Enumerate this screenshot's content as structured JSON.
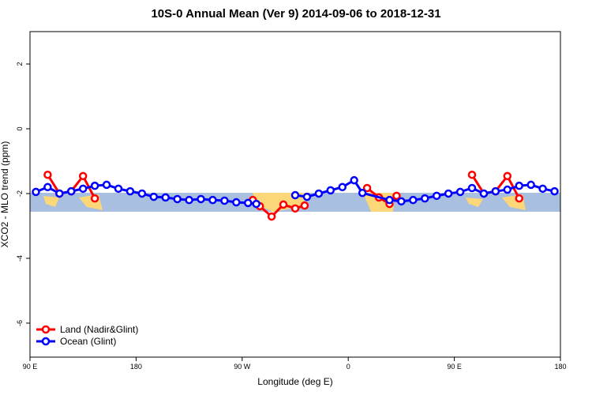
{
  "chart_data": {
    "type": "line",
    "title": "10S-0 Annual Mean (Ver 9)   2014-09-06 to 2018-12-31",
    "x_label": "Longitude (deg E)",
    "y_label": "XCO2 - MLO trend (ppm)",
    "xlim": [
      90,
      540
    ],
    "ylim": [
      -7.05,
      3
    ],
    "xticks": [
      {
        "value": 90,
        "label": "90 E"
      },
      180,
      {
        "value": 270,
        "label": "90 W"
      },
      {
        "value": 360,
        "label": "0"
      },
      {
        "value": 450,
        "label": "90 E"
      },
      {
        "value": 540,
        "label": "180"
      }
    ],
    "yticks": [
      -6,
      -4,
      -2,
      0,
      2
    ],
    "legend": "bottom-left",
    "series": [
      {
        "name": "Land (Nadir&Glint)",
        "color": "#ff0000",
        "x": [
          105,
          115,
          125,
          135,
          145,
          200,
          279,
          285,
          295,
          305,
          315,
          323,
          350,
          376,
          386,
          395,
          401,
          430,
          465,
          475,
          485,
          495,
          505
        ],
        "values": [
          -1.42,
          -2.0,
          -1.93,
          -1.46,
          -2.15,
          null,
          -2.2,
          -2.39,
          -2.71,
          -2.34,
          -2.46,
          -2.37,
          null,
          -1.83,
          -2.12,
          -2.32,
          -2.07,
          null,
          -1.42,
          -2.0,
          -1.93,
          -1.46,
          -2.15
        ]
      },
      {
        "name": "Ocean (Glint)",
        "color": "#0000ff",
        "x": [
          95,
          105,
          115,
          125,
          135,
          145,
          155,
          165,
          175,
          185,
          195,
          205,
          215,
          225,
          235,
          245,
          255,
          265,
          275,
          282,
          300,
          315,
          325,
          335,
          345,
          355,
          365,
          372,
          395,
          405,
          415,
          425,
          435,
          445,
          455,
          465,
          475,
          485,
          495,
          505,
          515,
          525,
          535
        ],
        "values": [
          -1.95,
          -1.8,
          -2.0,
          -1.93,
          -1.85,
          -1.76,
          -1.73,
          -1.85,
          -1.93,
          -2.0,
          -2.1,
          -2.12,
          -2.17,
          -2.2,
          -2.17,
          -2.2,
          -2.22,
          -2.27,
          -2.29,
          -2.32,
          null,
          -2.05,
          -2.1,
          -2.0,
          -1.9,
          -1.8,
          -1.59,
          -1.98,
          -2.2,
          -2.24,
          -2.2,
          -2.15,
          -2.07,
          -2.0,
          -1.95,
          -1.83,
          -2.0,
          -1.93,
          -1.88,
          -1.76,
          -1.73,
          -1.85,
          -1.93
        ]
      }
    ]
  }
}
